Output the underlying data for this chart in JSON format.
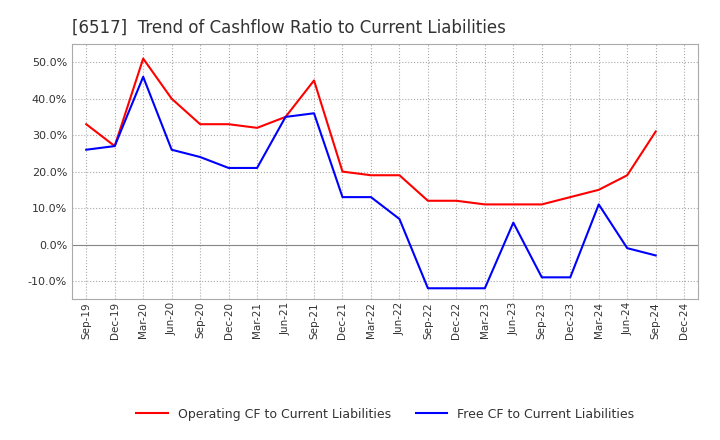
{
  "title": "[6517]  Trend of Cashflow Ratio to Current Liabilities",
  "title_fontsize": 12,
  "x_labels": [
    "Sep-19",
    "Dec-19",
    "Mar-20",
    "Jun-20",
    "Sep-20",
    "Dec-20",
    "Mar-21",
    "Jun-21",
    "Sep-21",
    "Dec-21",
    "Mar-22",
    "Jun-22",
    "Sep-22",
    "Dec-22",
    "Mar-23",
    "Jun-23",
    "Sep-23",
    "Dec-23",
    "Mar-24",
    "Jun-24",
    "Sep-24",
    "Dec-24"
  ],
  "operating_cf": [
    33,
    27,
    51,
    40,
    33,
    33,
    32,
    35,
    45,
    20,
    19,
    19,
    12,
    12,
    11,
    11,
    11,
    13,
    15,
    19,
    31,
    null
  ],
  "free_cf": [
    26,
    27,
    46,
    26,
    24,
    21,
    21,
    35,
    36,
    13,
    13,
    7,
    -12,
    -12,
    -12,
    6,
    -9,
    -9,
    11,
    -1,
    -3,
    null
  ],
  "operating_color": "#FF0000",
  "free_color": "#0000FF",
  "ylim": [
    -15,
    55
  ],
  "yticks": [
    -10,
    0,
    10,
    20,
    30,
    40,
    50
  ],
  "background_color": "#FFFFFF",
  "grid_color": "#AAAAAA",
  "legend_labels": [
    "Operating CF to Current Liabilities",
    "Free CF to Current Liabilities"
  ]
}
